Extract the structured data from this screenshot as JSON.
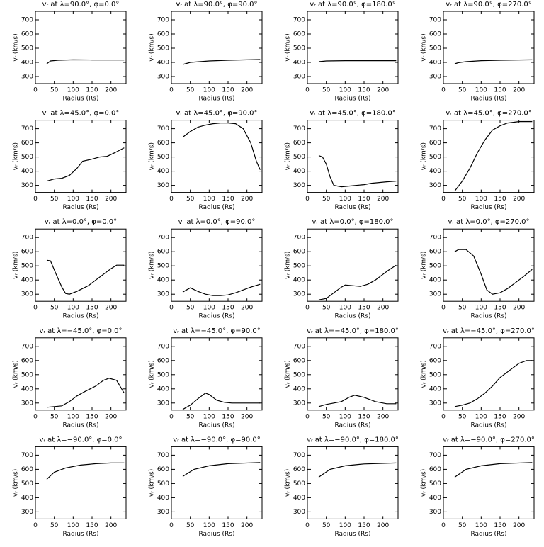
{
  "chart_data": [
    {
      "type": "line",
      "title": "vᵣ at λ=90.0°, φ=0.0°",
      "xlabel": "Radius (Rs)",
      "ylabel": "vᵣ (km/s)",
      "xlim": [
        0,
        240
      ],
      "ylim": [
        250,
        760
      ],
      "xticks": [
        0,
        50,
        100,
        150,
        200
      ],
      "yticks": [
        300,
        400,
        500,
        600,
        700
      ],
      "color": "#000000",
      "x": [
        30,
        40,
        60,
        100,
        150,
        200,
        235
      ],
      "values": [
        390,
        410,
        415,
        418,
        417,
        417,
        417
      ]
    },
    {
      "type": "line",
      "title": "vᵣ at λ=90.0°, φ=90.0°",
      "xlabel": "Radius (Rs)",
      "ylabel": "vᵣ (km/s)",
      "xlim": [
        0,
        240
      ],
      "ylim": [
        250,
        760
      ],
      "xticks": [
        0,
        50,
        100,
        150,
        200
      ],
      "yticks": [
        300,
        400,
        500,
        600,
        700
      ],
      "color": "#000000",
      "x": [
        30,
        50,
        100,
        150,
        200,
        235
      ],
      "values": [
        385,
        400,
        410,
        415,
        418,
        420
      ]
    },
    {
      "type": "line",
      "title": "vᵣ at λ=90.0°, φ=180.0°",
      "xlabel": "Radius (Rs)",
      "ylabel": "vᵣ (km/s)",
      "xlim": [
        0,
        240
      ],
      "ylim": [
        250,
        760
      ],
      "xticks": [
        0,
        50,
        100,
        150,
        200
      ],
      "yticks": [
        300,
        400,
        500,
        600,
        700
      ],
      "color": "#000000",
      "x": [
        30,
        50,
        100,
        150,
        200,
        235
      ],
      "values": [
        405,
        410,
        412,
        412,
        412,
        412
      ]
    },
    {
      "type": "line",
      "title": "vᵣ at λ=90.0°, φ=270.0°",
      "xlabel": "Radius (Rs)",
      "ylabel": "vᵣ (km/s)",
      "xlim": [
        0,
        240
      ],
      "ylim": [
        250,
        760
      ],
      "xticks": [
        0,
        50,
        100,
        150,
        200
      ],
      "yticks": [
        300,
        400,
        500,
        600,
        700
      ],
      "color": "#000000",
      "x": [
        30,
        40,
        60,
        100,
        150,
        200,
        235
      ],
      "values": [
        390,
        398,
        405,
        412,
        415,
        417,
        418
      ]
    },
    {
      "type": "line",
      "title": "vᵣ at λ=45.0°, φ=0.0°",
      "xlabel": "Radius (Rs)",
      "ylabel": "vᵣ (km/s)",
      "xlim": [
        0,
        240
      ],
      "ylim": [
        250,
        760
      ],
      "xticks": [
        0,
        50,
        100,
        150,
        200
      ],
      "yticks": [
        300,
        400,
        500,
        600,
        700
      ],
      "color": "#000000",
      "x": [
        30,
        50,
        70,
        90,
        110,
        125,
        150,
        170,
        190,
        210,
        235
      ],
      "values": [
        330,
        345,
        350,
        370,
        420,
        470,
        485,
        500,
        505,
        530,
        565
      ]
    },
    {
      "type": "line",
      "title": "vᵣ at λ=45.0°, φ=90.0°",
      "xlabel": "Radius (Rs)",
      "ylabel": "vᵣ (km/s)",
      "xlim": [
        0,
        240
      ],
      "ylim": [
        250,
        760
      ],
      "xticks": [
        0,
        50,
        100,
        150,
        200
      ],
      "yticks": [
        300,
        400,
        500,
        600,
        700
      ],
      "color": "#000000",
      "x": [
        30,
        50,
        70,
        90,
        110,
        130,
        150,
        170,
        190,
        210,
        225,
        235
      ],
      "values": [
        640,
        680,
        710,
        725,
        735,
        740,
        740,
        735,
        700,
        600,
        470,
        410
      ]
    },
    {
      "type": "line",
      "title": "vᵣ at λ=45.0°, φ=180.0°",
      "xlabel": "Radius (Rs)",
      "ylabel": "vᵣ (km/s)",
      "xlim": [
        0,
        240
      ],
      "ylim": [
        250,
        760
      ],
      "xticks": [
        0,
        50,
        100,
        150,
        200
      ],
      "yticks": [
        300,
        400,
        500,
        600,
        700
      ],
      "color": "#000000",
      "x": [
        30,
        40,
        50,
        60,
        70,
        90,
        110,
        130,
        150,
        170,
        190,
        210,
        235
      ],
      "values": [
        510,
        500,
        450,
        360,
        300,
        290,
        295,
        300,
        305,
        315,
        320,
        325,
        330
      ]
    },
    {
      "type": "line",
      "title": "vᵣ at λ=45.0°, φ=270.0°",
      "xlabel": "Radius (Rs)",
      "ylabel": "vᵣ (km/s)",
      "xlim": [
        0,
        240
      ],
      "ylim": [
        250,
        760
      ],
      "xticks": [
        0,
        50,
        100,
        150,
        200
      ],
      "yticks": [
        300,
        400,
        500,
        600,
        700
      ],
      "color": "#000000",
      "x": [
        30,
        50,
        70,
        90,
        110,
        130,
        150,
        170,
        200,
        235
      ],
      "values": [
        260,
        330,
        420,
        530,
        620,
        690,
        720,
        740,
        750,
        750
      ]
    },
    {
      "type": "line",
      "title": "vᵣ at λ=0.0°, φ=0.0°",
      "xlabel": "Radius (Rs)",
      "ylabel": "vᵣ (km/s)",
      "xlim": [
        0,
        240
      ],
      "ylim": [
        250,
        760
      ],
      "xticks": [
        0,
        50,
        100,
        150,
        200
      ],
      "yticks": [
        300,
        400,
        500,
        600,
        700
      ],
      "color": "#000000",
      "x": [
        30,
        40,
        55,
        70,
        80,
        90,
        110,
        140,
        160,
        180,
        200,
        215,
        235
      ],
      "values": [
        540,
        535,
        440,
        350,
        305,
        300,
        320,
        360,
        400,
        440,
        480,
        505,
        505
      ]
    },
    {
      "type": "line",
      "title": "vᵣ at λ=0.0°, φ=90.0°",
      "xlabel": "Radius (Rs)",
      "ylabel": "vᵣ (km/s)",
      "xlim": [
        0,
        240
      ],
      "ylim": [
        250,
        760
      ],
      "xticks": [
        0,
        50,
        100,
        150,
        200
      ],
      "yticks": [
        300,
        400,
        500,
        600,
        700
      ],
      "color": "#000000",
      "x": [
        30,
        40,
        50,
        70,
        90,
        110,
        130,
        150,
        170,
        190,
        210,
        235
      ],
      "values": [
        315,
        330,
        345,
        320,
        300,
        290,
        290,
        295,
        310,
        330,
        350,
        370
      ]
    },
    {
      "type": "line",
      "title": "vᵣ at λ=0.0°, φ=180.0°",
      "xlabel": "Radius (Rs)",
      "ylabel": "vᵣ (km/s)",
      "xlim": [
        0,
        240
      ],
      "ylim": [
        250,
        760
      ],
      "xticks": [
        0,
        50,
        100,
        150,
        200
      ],
      "yticks": [
        300,
        400,
        500,
        600,
        700
      ],
      "color": "#000000",
      "x": [
        30,
        50,
        70,
        90,
        100,
        120,
        140,
        160,
        180,
        200,
        215,
        235
      ],
      "values": [
        260,
        270,
        310,
        350,
        365,
        360,
        355,
        370,
        400,
        440,
        470,
        505
      ]
    },
    {
      "type": "line",
      "title": "vᵣ at λ=0.0°, φ=270.0°",
      "xlabel": "Radius (Rs)",
      "ylabel": "vᵣ (km/s)",
      "xlim": [
        0,
        240
      ],
      "ylim": [
        250,
        760
      ],
      "xticks": [
        0,
        50,
        100,
        150,
        200
      ],
      "yticks": [
        300,
        400,
        500,
        600,
        700
      ],
      "color": "#000000",
      "x": [
        30,
        40,
        60,
        80,
        100,
        115,
        130,
        150,
        170,
        190,
        210,
        235
      ],
      "values": [
        600,
        615,
        615,
        570,
        440,
        330,
        300,
        310,
        340,
        380,
        420,
        475
      ]
    },
    {
      "type": "line",
      "title": "vᵣ at λ=−45.0°, φ=0.0°",
      "xlabel": "Radius (Rs)",
      "ylabel": "vᵣ (km/s)",
      "xlim": [
        0,
        240
      ],
      "ylim": [
        250,
        760
      ],
      "xticks": [
        0,
        50,
        100,
        150,
        200
      ],
      "yticks": [
        300,
        400,
        500,
        600,
        700
      ],
      "color": "#000000",
      "x": [
        30,
        50,
        70,
        90,
        110,
        130,
        160,
        180,
        195,
        215,
        235
      ],
      "values": [
        270,
        275,
        280,
        310,
        350,
        380,
        420,
        460,
        475,
        460,
        370
      ]
    },
    {
      "type": "line",
      "title": "vᵣ at λ=−45.0°, φ=90.0°",
      "xlabel": "Radius (Rs)",
      "ylabel": "vᵣ (km/s)",
      "xlim": [
        0,
        240
      ],
      "ylim": [
        250,
        760
      ],
      "xticks": [
        0,
        50,
        100,
        150,
        200
      ],
      "yticks": [
        300,
        400,
        500,
        600,
        700
      ],
      "color": "#000000",
      "x": [
        30,
        50,
        70,
        90,
        100,
        120,
        140,
        160,
        235
      ],
      "values": [
        255,
        285,
        330,
        370,
        360,
        320,
        305,
        300,
        300
      ]
    },
    {
      "type": "line",
      "title": "vᵣ at λ=−45.0°, φ=180.0°",
      "xlabel": "Radius (Rs)",
      "ylabel": "vᵣ (km/s)",
      "xlim": [
        0,
        240
      ],
      "ylim": [
        250,
        760
      ],
      "xticks": [
        0,
        50,
        100,
        150,
        200
      ],
      "yticks": [
        300,
        400,
        500,
        600,
        700
      ],
      "color": "#000000",
      "x": [
        30,
        50,
        70,
        90,
        110,
        125,
        150,
        180,
        210,
        235
      ],
      "values": [
        275,
        290,
        300,
        310,
        340,
        355,
        340,
        310,
        295,
        295
      ]
    },
    {
      "type": "line",
      "title": "vᵣ at λ=−45.0°, φ=270.0°",
      "xlabel": "Radius (Rs)",
      "ylabel": "vᵣ (km/s)",
      "xlim": [
        0,
        240
      ],
      "ylim": [
        250,
        760
      ],
      "xticks": [
        0,
        50,
        100,
        150,
        200
      ],
      "yticks": [
        300,
        400,
        500,
        600,
        700
      ],
      "color": "#000000",
      "x": [
        30,
        50,
        70,
        90,
        110,
        130,
        150,
        180,
        200,
        220,
        235
      ],
      "values": [
        275,
        285,
        300,
        330,
        370,
        420,
        480,
        540,
        580,
        600,
        600
      ]
    },
    {
      "type": "line",
      "title": "vᵣ at λ=−90.0°, φ=0.0°",
      "xlabel": "Radius (Rs)",
      "ylabel": "vᵣ (km/s)",
      "xlim": [
        0,
        240
      ],
      "ylim": [
        250,
        760
      ],
      "xticks": [
        0,
        50,
        100,
        150,
        200
      ],
      "yticks": [
        300,
        400,
        500,
        600,
        700
      ],
      "color": "#000000",
      "x": [
        30,
        50,
        80,
        120,
        160,
        200,
        235
      ],
      "values": [
        530,
        580,
        610,
        630,
        640,
        645,
        645
      ]
    },
    {
      "type": "line",
      "title": "vᵣ at λ=−90.0°, φ=90.0°",
      "xlabel": "Radius (Rs)",
      "ylabel": "vᵣ (km/s)",
      "xlim": [
        0,
        240
      ],
      "ylim": [
        250,
        760
      ],
      "xticks": [
        0,
        50,
        100,
        150,
        200
      ],
      "yticks": [
        300,
        400,
        500,
        600,
        700
      ],
      "color": "#000000",
      "x": [
        30,
        60,
        100,
        150,
        235
      ],
      "values": [
        550,
        600,
        625,
        640,
        648
      ]
    },
    {
      "type": "line",
      "title": "vᵣ at λ=−90.0°, φ=180.0°",
      "xlabel": "Radius (Rs)",
      "ylabel": "vᵣ (km/s)",
      "xlim": [
        0,
        240
      ],
      "ylim": [
        250,
        760
      ],
      "xticks": [
        0,
        50,
        100,
        150,
        200
      ],
      "yticks": [
        300,
        400,
        500,
        600,
        700
      ],
      "color": "#000000",
      "x": [
        30,
        60,
        100,
        150,
        235
      ],
      "values": [
        545,
        600,
        625,
        638,
        645
      ]
    },
    {
      "type": "line",
      "title": "vᵣ at λ=−90.0°, φ=270.0°",
      "xlabel": "Radius (Rs)",
      "ylabel": "vᵣ (km/s)",
      "xlim": [
        0,
        240
      ],
      "ylim": [
        250,
        760
      ],
      "xticks": [
        0,
        50,
        100,
        150,
        200
      ],
      "yticks": [
        300,
        400,
        500,
        600,
        700
      ],
      "color": "#000000",
      "x": [
        30,
        60,
        100,
        150,
        235
      ],
      "values": [
        545,
        600,
        625,
        640,
        648
      ]
    }
  ]
}
